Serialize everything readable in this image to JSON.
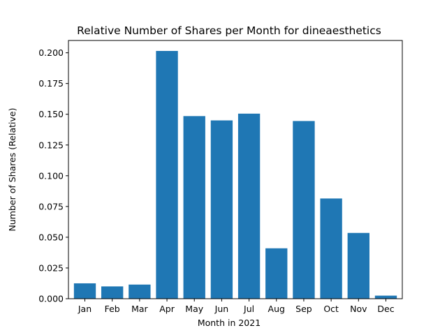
{
  "chart_data": {
    "type": "bar",
    "title": "Relative Number of Shares per Month for dineaesthetics",
    "xlabel": "Month in 2021",
    "ylabel": "Number of Shares (Relative)",
    "categories": [
      "Jan",
      "Feb",
      "Mar",
      "Apr",
      "May",
      "Jun",
      "Jul",
      "Aug",
      "Sep",
      "Oct",
      "Nov",
      "Dec"
    ],
    "values": [
      0.0125,
      0.01,
      0.0115,
      0.2015,
      0.1485,
      0.145,
      0.1505,
      0.041,
      0.1445,
      0.0815,
      0.0535,
      0.0025
    ],
    "ylim": [
      0,
      0.21
    ],
    "yticks": [
      "0.000",
      "0.025",
      "0.050",
      "0.075",
      "0.100",
      "0.125",
      "0.150",
      "0.175",
      "0.200"
    ],
    "grid": false,
    "bar_color": "#1f77b4"
  }
}
